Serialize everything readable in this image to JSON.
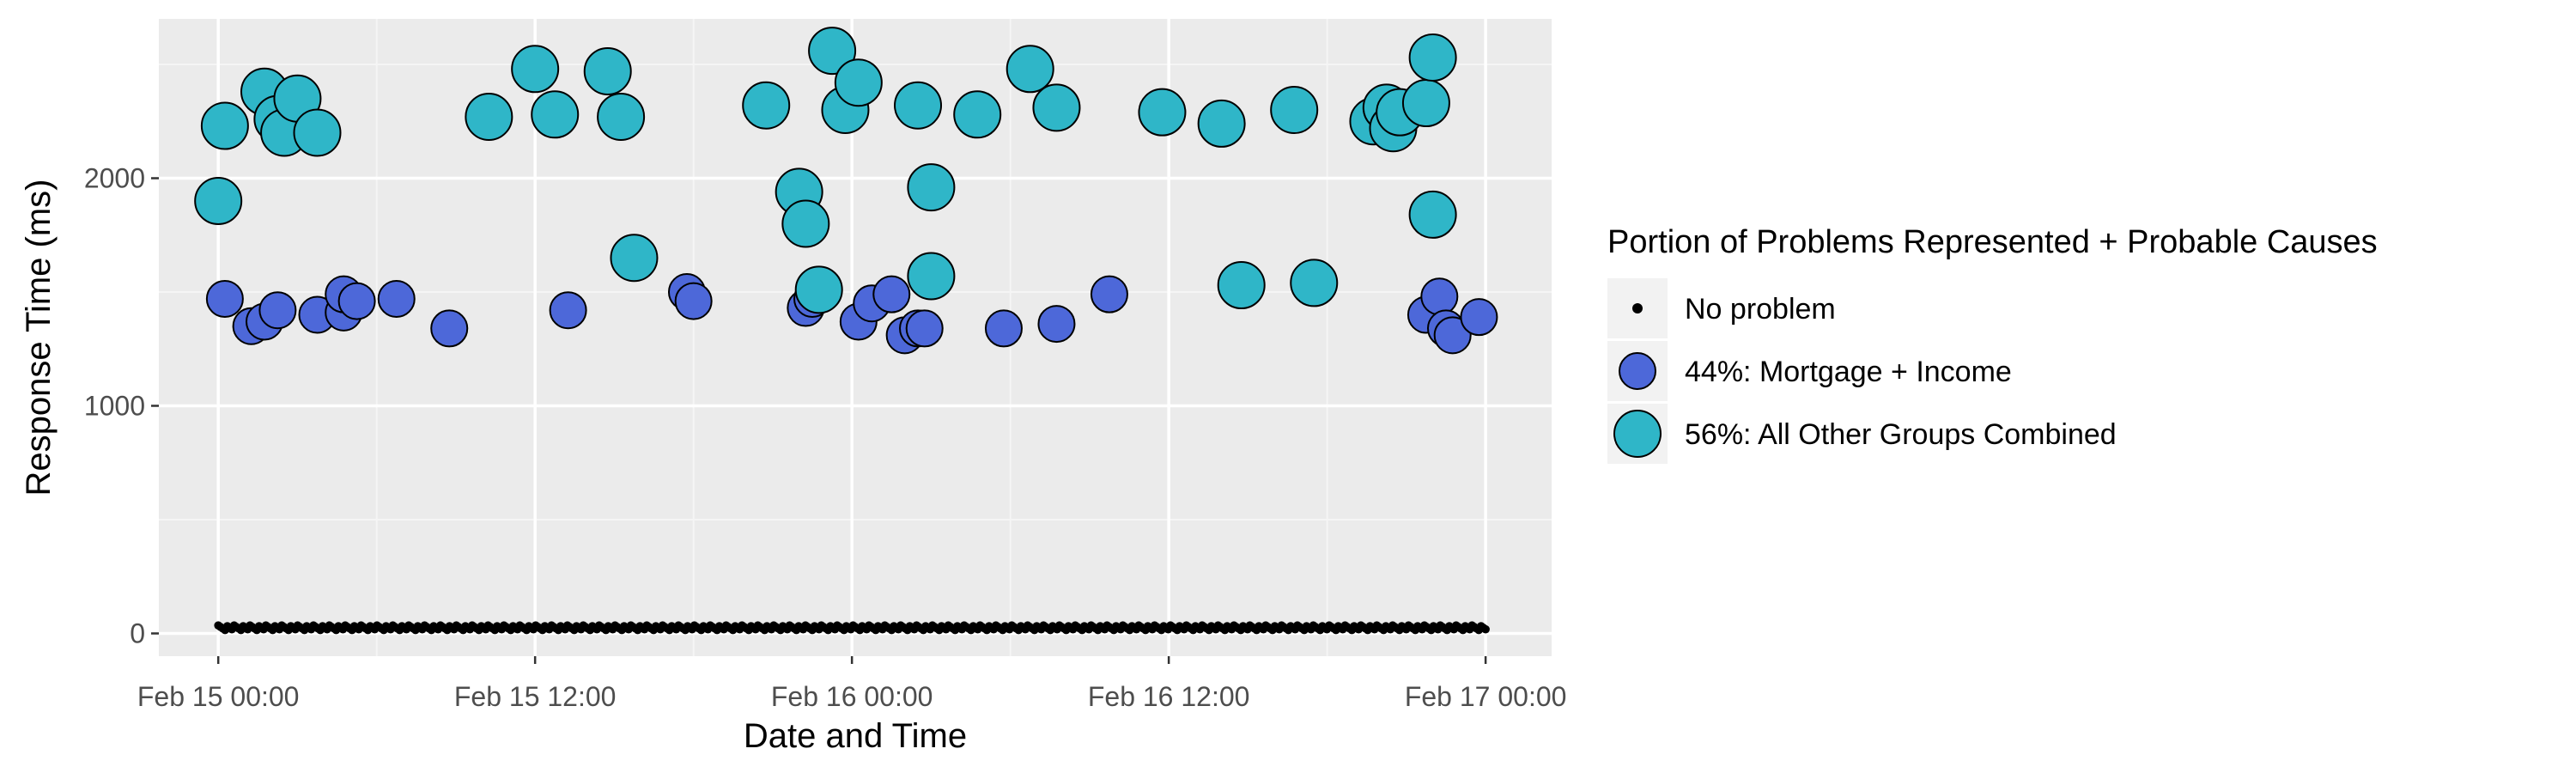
{
  "chart_data": {
    "type": "scatter",
    "xlabel": "Date and Time",
    "ylabel": "Response Time (ms)",
    "x_ticks": [
      "Feb 15 00:00",
      "Feb 15 12:00",
      "Feb 16 00:00",
      "Feb 16 12:00",
      "Feb 17 00:00"
    ],
    "x_range": [
      "Feb 14 21:45",
      "Feb 17 02:30"
    ],
    "y_ticks": [
      0,
      1000,
      2000
    ],
    "ylim": [
      -100,
      2700
    ],
    "grid": true,
    "legend": {
      "title": "Portion of Problems Represented + Probable Causes",
      "placement": "right"
    },
    "colors": {
      "panel_background": "#ebebeb",
      "no_problem": "#000000",
      "mortgage_income": "#4d68d9",
      "other_groups": "#2fb6c8"
    },
    "series": [
      {
        "name": "No problem",
        "baseline_value_ms": 25,
        "span": [
          "Feb 15 00:00",
          "Feb 17 00:00"
        ],
        "x": [],
        "y": []
      },
      {
        "name": "44%: Mortgage + Income",
        "x": [
          "Feb 15 00:15",
          "Feb 15 01:15",
          "Feb 15 01:45",
          "Feb 15 02:15",
          "Feb 15 03:45",
          "Feb 15 04:45",
          "Feb 15 04:45",
          "Feb 15 05:15",
          "Feb 15 06:45",
          "Feb 15 08:45",
          "Feb 15 13:15",
          "Feb 15 17:45",
          "Feb 15 18:00",
          "Feb 15 22:15",
          "Feb 15 22:30",
          "Feb 16 00:15",
          "Feb 16 00:45",
          "Feb 16 01:30",
          "Feb 16 02:00",
          "Feb 16 02:30",
          "Feb 16 02:45",
          "Feb 16 05:45",
          "Feb 16 07:45",
          "Feb 16 09:45",
          "Feb 16 21:45",
          "Feb 16 22:15",
          "Feb 16 22:30",
          "Feb 16 22:45",
          "Feb 16 23:45"
        ],
        "y": [
          1470,
          1350,
          1370,
          1420,
          1400,
          1410,
          1490,
          1460,
          1470,
          1340,
          1420,
          1500,
          1460,
          1430,
          1470,
          1370,
          1450,
          1490,
          1310,
          1340,
          1340,
          1340,
          1360,
          1490,
          1400,
          1480,
          1340,
          1310,
          1390
        ]
      },
      {
        "name": "56%: All Other Groups Combined",
        "x": [
          "Feb 15 00:00",
          "Feb 15 00:15",
          "Feb 15 01:45",
          "Feb 15 02:15",
          "Feb 15 02:30",
          "Feb 15 03:00",
          "Feb 15 03:45",
          "Feb 15 10:15",
          "Feb 15 12:00",
          "Feb 15 12:45",
          "Feb 15 14:45",
          "Feb 15 15:15",
          "Feb 15 15:45",
          "Feb 15 20:45",
          "Feb 15 22:00",
          "Feb 15 22:15",
          "Feb 15 22:45",
          "Feb 15 23:15",
          "Feb 15 23:45",
          "Feb 16 00:15",
          "Feb 16 02:30",
          "Feb 16 03:00",
          "Feb 16 03:00",
          "Feb 16 04:45",
          "Feb 16 06:45",
          "Feb 16 07:45",
          "Feb 16 11:45",
          "Feb 16 14:00",
          "Feb 16 14:45",
          "Feb 16 16:45",
          "Feb 16 17:30",
          "Feb 16 19:45",
          "Feb 16 20:15",
          "Feb 16 20:30",
          "Feb 16 20:45",
          "Feb 16 21:45",
          "Feb 16 22:00",
          "Feb 16 22:00"
        ],
        "y": [
          1900,
          2230,
          2380,
          2260,
          2200,
          2350,
          2200,
          2270,
          2480,
          2280,
          2470,
          2270,
          1650,
          2320,
          1940,
          1800,
          1510,
          2560,
          2300,
          2420,
          2320,
          1570,
          1960,
          2280,
          2480,
          2310,
          2290,
          2240,
          1530,
          2300,
          1540,
          2250,
          2310,
          2220,
          2290,
          2330,
          2530,
          1840
        ]
      }
    ]
  }
}
